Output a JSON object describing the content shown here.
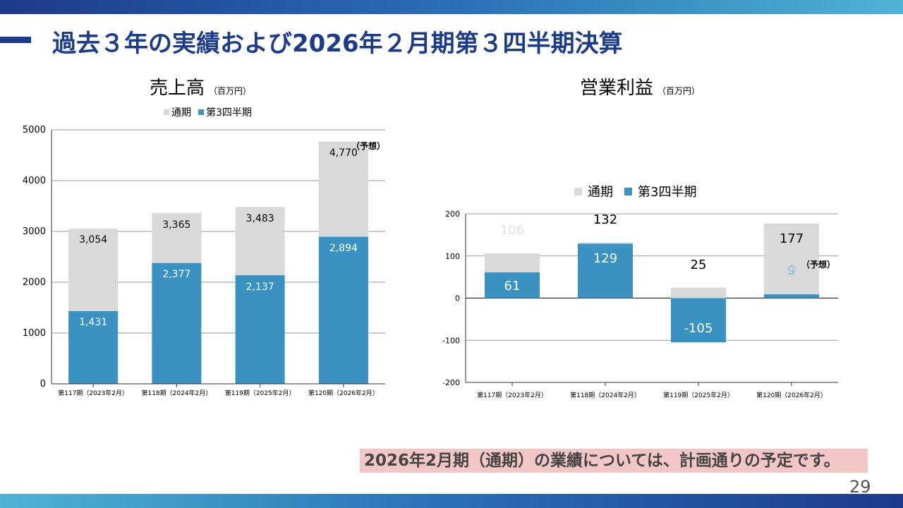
{
  "title": "過去３年の実績および2026年２月期第３四半期決算",
  "page_number": "29",
  "note": "2026年2月期（通期）の業績については、計画通りの予定です。",
  "colors": {
    "full_year": "#d9d9d9",
    "q3": "#3a92c3",
    "brand": "#1b3b8c",
    "note_bg": "#f4c7c7"
  },
  "chart_data": [
    {
      "type": "bar",
      "title": "売上高",
      "unit": "（百万円）",
      "legend": [
        "通期",
        "第3四半期"
      ],
      "categories": [
        "第117期（2023年2月）",
        "第118期（2024年2月）",
        "第119期（2025年2月）",
        "第120期（2026年2月）"
      ],
      "series": [
        {
          "name": "通期",
          "values": [
            3054,
            3365,
            3483,
            4770
          ],
          "labels": [
            "3,054",
            "3,365",
            "3,483",
            "4,770"
          ]
        },
        {
          "name": "第3四半期",
          "values": [
            1431,
            2377,
            2137,
            2894
          ],
          "labels": [
            "1,431",
            "2,377",
            "2,137",
            "2,894"
          ]
        }
      ],
      "annotation": "（予想）",
      "yticks": [
        "0",
        "1000",
        "2000",
        "3000",
        "4000",
        "5000"
      ],
      "ylim": [
        0,
        5000
      ],
      "grid": true
    },
    {
      "type": "bar",
      "title": "営業利益",
      "unit": "（百万円）",
      "legend": [
        "通期",
        "第3四半期"
      ],
      "categories": [
        "第117期（2023年2月）",
        "第118期（2024年2月）",
        "第119期（2025年2月）",
        "第120期（2026年2月）"
      ],
      "series": [
        {
          "name": "通期",
          "values": [
            106,
            132,
            25,
            177
          ],
          "labels": [
            "106",
            "132",
            "25",
            "177"
          ]
        },
        {
          "name": "第3四半期",
          "values": [
            61,
            129,
            -105,
            9
          ],
          "labels": [
            "61",
            "129",
            "-105",
            "9"
          ]
        }
      ],
      "annotation": "（予想）",
      "yticks": [
        "-200",
        "-100",
        "0",
        "100",
        "200"
      ],
      "ylim": [
        -200,
        200
      ],
      "grid": true
    }
  ]
}
